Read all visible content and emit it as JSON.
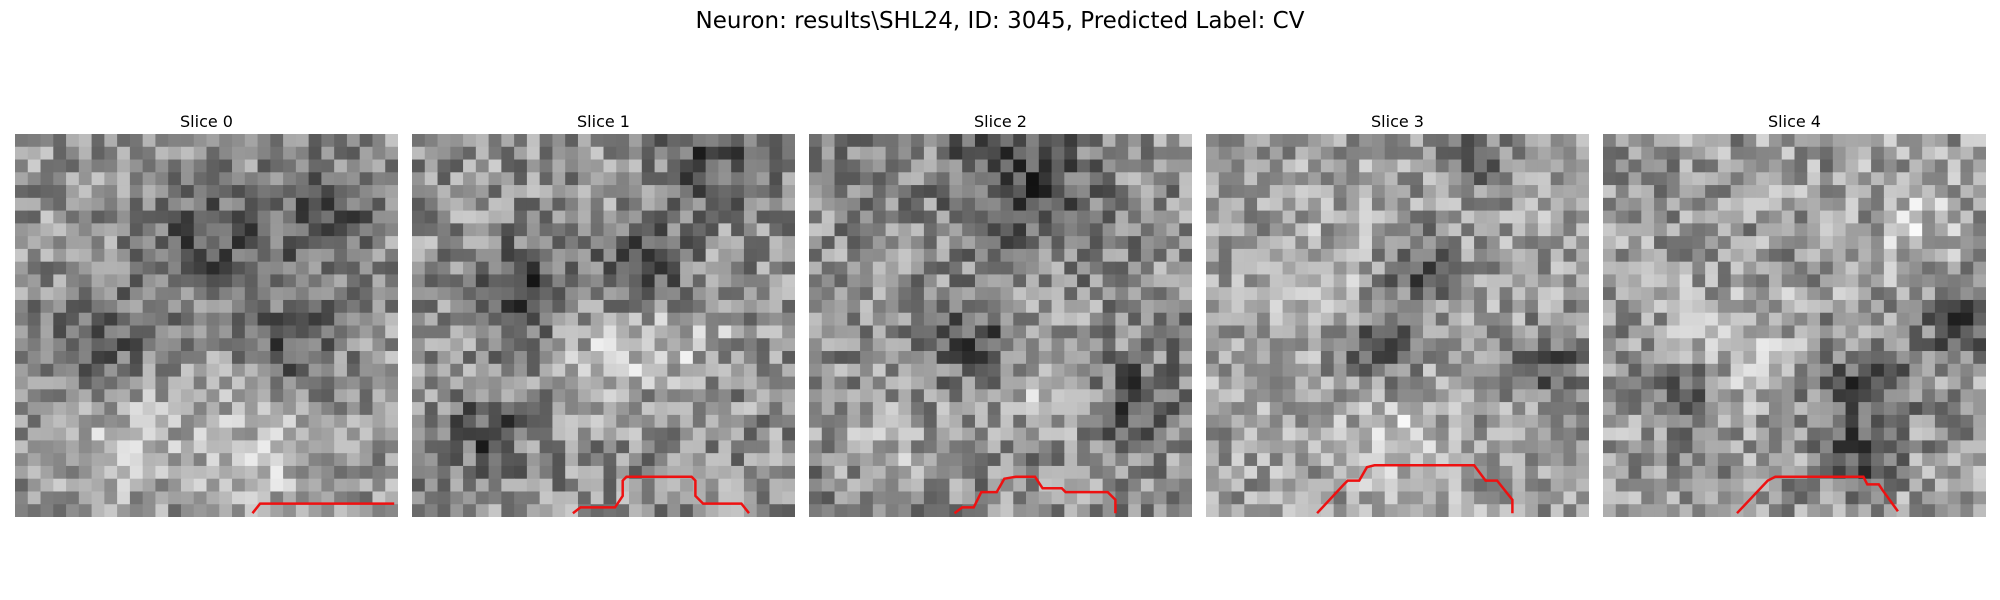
{
  "figure": {
    "title": "Neuron: results\\SHL24, ID: 3045, Predicted Label: CV"
  },
  "slices": [
    {
      "title": "Slice 0",
      "base_gray": 150,
      "contrast": 55,
      "seed": 11,
      "dark_spots": [
        [
          0.8,
          0.22,
          0.14
        ],
        [
          0.72,
          0.55,
          0.12
        ],
        [
          0.5,
          0.28,
          0.16
        ],
        [
          0.2,
          0.55,
          0.14
        ]
      ],
      "light_spots": [
        [
          0.65,
          0.84,
          0.16
        ],
        [
          0.3,
          0.8,
          0.14
        ]
      ],
      "contour": [
        [
          0.62,
          0.99
        ],
        [
          0.64,
          0.965
        ],
        [
          0.99,
          0.965
        ]
      ]
    },
    {
      "title": "Slice 1",
      "base_gray": 145,
      "contrast": 60,
      "seed": 23,
      "dark_spots": [
        [
          0.78,
          0.06,
          0.12
        ],
        [
          0.62,
          0.36,
          0.12
        ],
        [
          0.3,
          0.4,
          0.12
        ],
        [
          0.2,
          0.78,
          0.1
        ]
      ],
      "light_spots": [
        [
          0.7,
          0.52,
          0.14
        ],
        [
          0.5,
          0.58,
          0.12
        ]
      ],
      "contour": [
        [
          0.42,
          0.99
        ],
        [
          0.44,
          0.975
        ],
        [
          0.53,
          0.975
        ],
        [
          0.55,
          0.945
        ],
        [
          0.55,
          0.905
        ],
        [
          0.56,
          0.895
        ],
        [
          0.73,
          0.895
        ],
        [
          0.74,
          0.905
        ],
        [
          0.74,
          0.945
        ],
        [
          0.76,
          0.965
        ],
        [
          0.86,
          0.965
        ],
        [
          0.88,
          0.99
        ]
      ]
    },
    {
      "title": "Slice 2",
      "base_gray": 140,
      "contrast": 60,
      "seed": 37,
      "dark_spots": [
        [
          0.55,
          0.1,
          0.18
        ],
        [
          0.45,
          0.55,
          0.1
        ],
        [
          0.85,
          0.7,
          0.1
        ]
      ],
      "light_spots": [
        [
          0.6,
          0.62,
          0.14
        ],
        [
          0.2,
          0.8,
          0.12
        ]
      ],
      "contour": [
        [
          0.38,
          0.99
        ],
        [
          0.4,
          0.975
        ],
        [
          0.43,
          0.975
        ],
        [
          0.45,
          0.935
        ],
        [
          0.49,
          0.935
        ],
        [
          0.51,
          0.9
        ],
        [
          0.54,
          0.895
        ],
        [
          0.59,
          0.895
        ],
        [
          0.61,
          0.925
        ],
        [
          0.66,
          0.925
        ],
        [
          0.67,
          0.935
        ],
        [
          0.78,
          0.935
        ],
        [
          0.8,
          0.955
        ],
        [
          0.8,
          0.99
        ]
      ]
    },
    {
      "title": "Slice 3",
      "base_gray": 160,
      "contrast": 55,
      "seed": 53,
      "dark_spots": [
        [
          0.7,
          0.06,
          0.08
        ],
        [
          0.56,
          0.35,
          0.1
        ],
        [
          0.45,
          0.55,
          0.1
        ],
        [
          0.9,
          0.6,
          0.1
        ]
      ],
      "light_spots": [
        [
          0.5,
          0.8,
          0.12
        ],
        [
          0.3,
          0.4,
          0.12
        ]
      ],
      "contour": [
        [
          0.29,
          0.99
        ],
        [
          0.36,
          0.915
        ],
        [
          0.37,
          0.905
        ],
        [
          0.4,
          0.905
        ],
        [
          0.42,
          0.87
        ],
        [
          0.44,
          0.865
        ],
        [
          0.7,
          0.865
        ],
        [
          0.73,
          0.905
        ],
        [
          0.76,
          0.905
        ],
        [
          0.8,
          0.955
        ],
        [
          0.8,
          0.99
        ]
      ]
    },
    {
      "title": "Slice 4",
      "base_gray": 155,
      "contrast": 60,
      "seed": 71,
      "dark_spots": [
        [
          0.94,
          0.48,
          0.12
        ],
        [
          0.68,
          0.66,
          0.12
        ],
        [
          0.66,
          0.84,
          0.1
        ],
        [
          0.2,
          0.68,
          0.1
        ]
      ],
      "light_spots": [
        [
          0.35,
          0.55,
          0.14
        ],
        [
          0.82,
          0.25,
          0.12
        ]
      ],
      "contour": [
        [
          0.35,
          0.99
        ],
        [
          0.43,
          0.905
        ],
        [
          0.45,
          0.895
        ],
        [
          0.68,
          0.895
        ],
        [
          0.69,
          0.915
        ],
        [
          0.72,
          0.915
        ],
        [
          0.73,
          0.93
        ],
        [
          0.77,
          0.985
        ]
      ]
    }
  ]
}
